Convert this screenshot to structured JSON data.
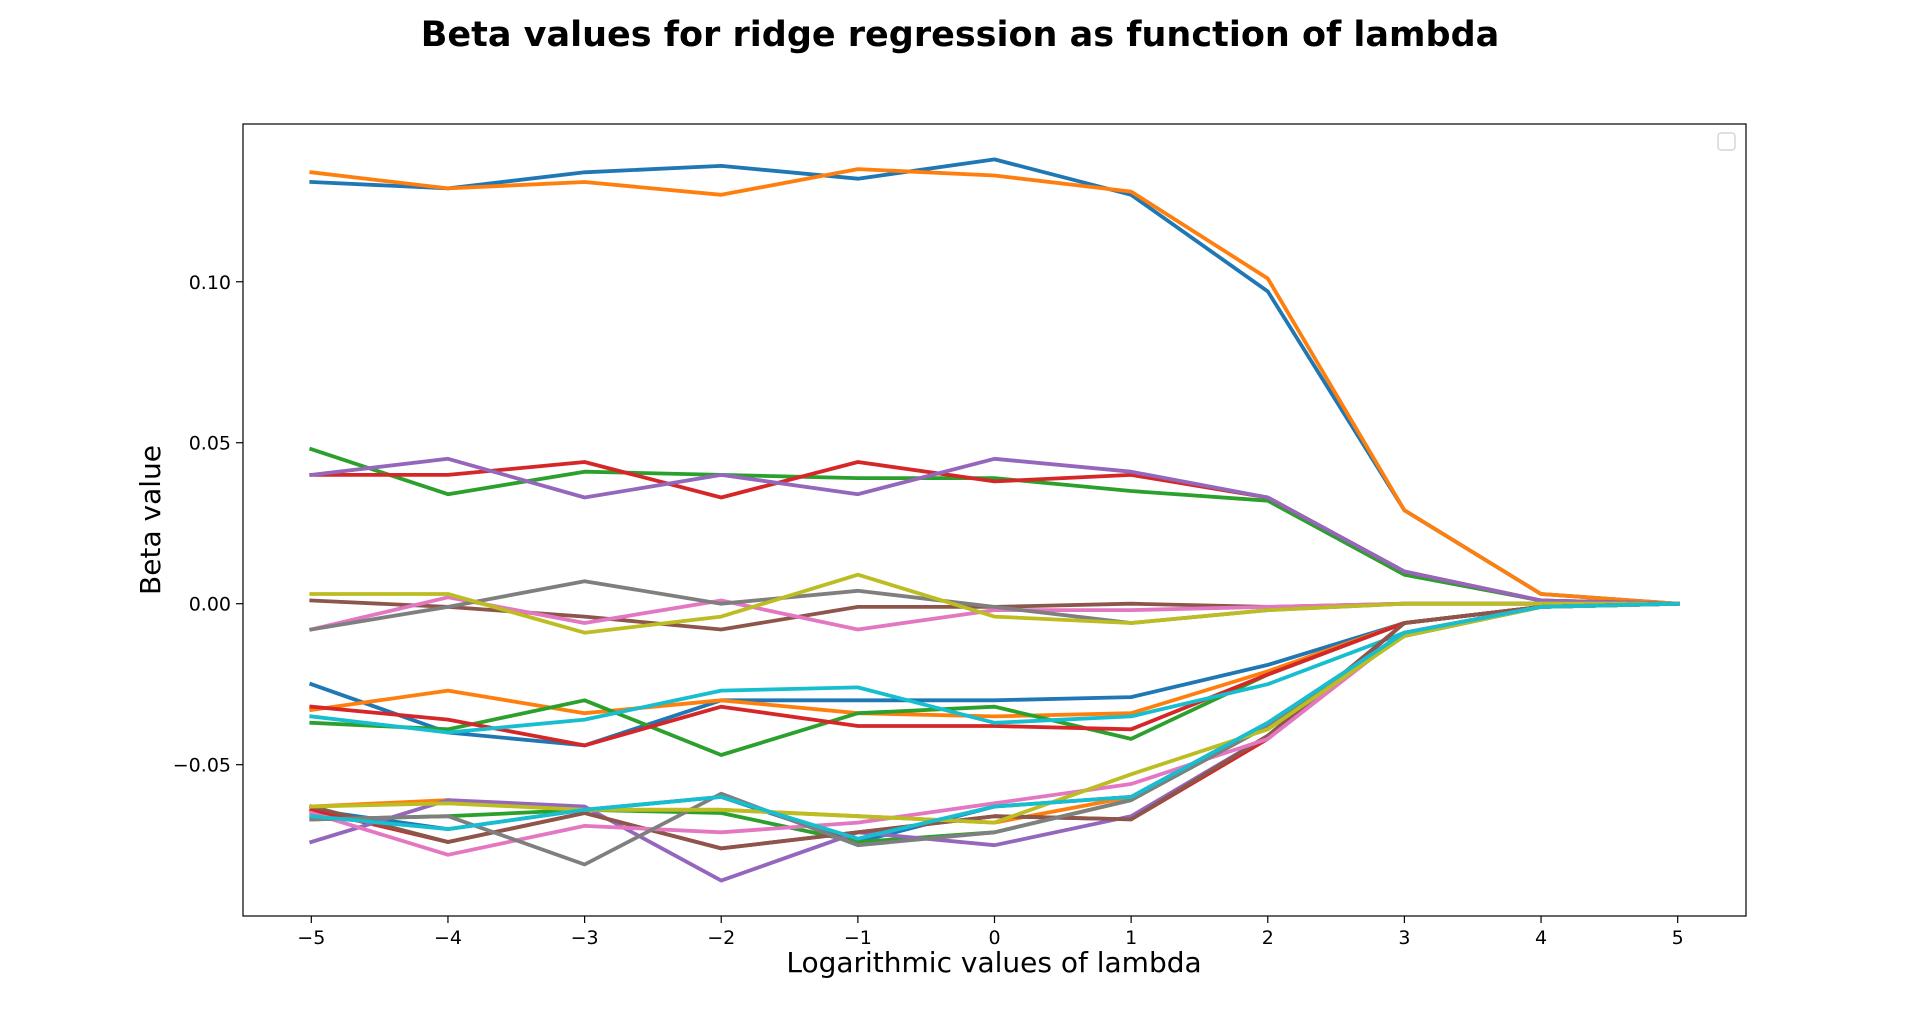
{
  "chart_data": {
    "type": "line",
    "title": "Beta values for ridge regression as function of lambda",
    "xlabel": "Logarithmic values of lambda",
    "ylabel": "Beta value",
    "x": [
      -5,
      -4,
      -3,
      -2,
      -1,
      0,
      1,
      2,
      3,
      4,
      5
    ],
    "x_ticks": [
      -5,
      -4,
      -3,
      -2,
      -1,
      0,
      1,
      2,
      3,
      4,
      5
    ],
    "x_tick_labels": [
      "−5",
      "−4",
      "−3",
      "−2",
      "−1",
      "0",
      "1",
      "2",
      "3",
      "4",
      "5"
    ],
    "y_ticks": [
      -0.05,
      0.0,
      0.05,
      0.1
    ],
    "y_tick_labels": [
      "−0.05",
      "0.00",
      "0.05",
      "0.10"
    ],
    "xlim": [
      -5.5,
      5.5
    ],
    "ylim": [
      -0.097,
      0.149
    ],
    "grid": false,
    "legend": "top-right (empty)",
    "series": [
      {
        "color": "#1f77b4",
        "values": [
          0.131,
          0.129,
          0.134,
          0.136,
          0.132,
          0.138,
          0.127,
          0.097,
          0.029,
          0.003,
          0.0
        ]
      },
      {
        "color": "#ff7f0e",
        "values": [
          0.134,
          0.129,
          0.131,
          0.127,
          0.135,
          0.133,
          0.128,
          0.101,
          0.029,
          0.003,
          0.0
        ]
      },
      {
        "color": "#2ca02c",
        "values": [
          0.048,
          0.034,
          0.041,
          0.04,
          0.039,
          0.039,
          0.035,
          0.032,
          0.009,
          0.001,
          0.0
        ]
      },
      {
        "color": "#d62728",
        "values": [
          0.04,
          0.04,
          0.044,
          0.033,
          0.044,
          0.038,
          0.04,
          0.033,
          0.01,
          0.001,
          0.0
        ]
      },
      {
        "color": "#9467bd",
        "values": [
          0.04,
          0.045,
          0.033,
          0.04,
          0.034,
          0.045,
          0.041,
          0.033,
          0.01,
          0.001,
          0.0
        ]
      },
      {
        "color": "#8c564b",
        "values": [
          0.001,
          -0.001,
          -0.004,
          -0.008,
          -0.001,
          -0.001,
          0.0,
          -0.001,
          0.0,
          0.0,
          0.0
        ]
      },
      {
        "color": "#e377c2",
        "values": [
          -0.008,
          0.002,
          -0.006,
          0.001,
          -0.008,
          -0.002,
          -0.002,
          -0.001,
          0.0,
          0.0,
          0.0
        ]
      },
      {
        "color": "#7f7f7f",
        "values": [
          -0.008,
          -0.001,
          0.007,
          0.0,
          0.004,
          -0.001,
          -0.006,
          -0.002,
          0.0,
          0.0,
          0.0
        ]
      },
      {
        "color": "#bcbd22",
        "values": [
          0.003,
          0.003,
          -0.009,
          -0.004,
          0.009,
          -0.004,
          -0.006,
          -0.002,
          0.0,
          0.0,
          0.0
        ]
      },
      {
        "color": "#1f77b4",
        "values": [
          -0.025,
          -0.04,
          -0.044,
          -0.03,
          -0.03,
          -0.03,
          -0.029,
          -0.019,
          -0.006,
          -0.001,
          0.0
        ]
      },
      {
        "color": "#ff7f0e",
        "values": [
          -0.033,
          -0.027,
          -0.034,
          -0.03,
          -0.034,
          -0.035,
          -0.034,
          -0.021,
          -0.006,
          -0.001,
          0.0
        ]
      },
      {
        "color": "#2ca02c",
        "values": [
          -0.037,
          -0.039,
          -0.03,
          -0.047,
          -0.034,
          -0.032,
          -0.042,
          -0.022,
          -0.006,
          -0.001,
          0.0
        ]
      },
      {
        "color": "#d62728",
        "values": [
          -0.032,
          -0.036,
          -0.044,
          -0.032,
          -0.038,
          -0.038,
          -0.039,
          -0.022,
          -0.006,
          -0.001,
          0.0
        ]
      },
      {
        "color": "#17becf",
        "values": [
          -0.035,
          -0.04,
          -0.036,
          -0.027,
          -0.026,
          -0.037,
          -0.035,
          -0.025,
          -0.009,
          -0.001,
          0.0
        ]
      },
      {
        "color": "#1f77b4",
        "values": [
          -0.064,
          -0.07,
          -0.064,
          -0.06,
          -0.074,
          -0.063,
          -0.06,
          -0.037,
          -0.009,
          -0.001,
          0.0
        ]
      },
      {
        "color": "#ff7f0e",
        "values": [
          -0.063,
          -0.061,
          -0.064,
          -0.064,
          -0.066,
          -0.068,
          -0.06,
          -0.038,
          -0.01,
          -0.001,
          0.0
        ]
      },
      {
        "color": "#2ca02c",
        "values": [
          -0.067,
          -0.066,
          -0.064,
          -0.065,
          -0.074,
          -0.071,
          -0.061,
          -0.038,
          -0.01,
          -0.001,
          0.0
        ]
      },
      {
        "color": "#d62728",
        "values": [
          -0.064,
          -0.074,
          -0.065,
          -0.076,
          -0.071,
          -0.066,
          -0.067,
          -0.042,
          -0.006,
          -0.001,
          0.0
        ]
      },
      {
        "color": "#9467bd",
        "values": [
          -0.074,
          -0.061,
          -0.063,
          -0.086,
          -0.071,
          -0.075,
          -0.066,
          -0.041,
          -0.009,
          -0.001,
          0.0
        ]
      },
      {
        "color": "#8c564b",
        "values": [
          -0.063,
          -0.074,
          -0.065,
          -0.076,
          -0.071,
          -0.066,
          -0.067,
          -0.041,
          -0.006,
          -0.001,
          0.0
        ]
      },
      {
        "color": "#e377c2",
        "values": [
          -0.065,
          -0.078,
          -0.069,
          -0.071,
          -0.068,
          -0.062,
          -0.056,
          -0.042,
          -0.009,
          -0.001,
          0.0
        ]
      },
      {
        "color": "#7f7f7f",
        "values": [
          -0.067,
          -0.066,
          -0.081,
          -0.059,
          -0.075,
          -0.071,
          -0.061,
          -0.038,
          -0.01,
          -0.001,
          0.0
        ]
      },
      {
        "color": "#bcbd22",
        "values": [
          -0.063,
          -0.062,
          -0.064,
          -0.064,
          -0.066,
          -0.068,
          -0.053,
          -0.039,
          -0.01,
          -0.001,
          0.0
        ]
      },
      {
        "color": "#17becf",
        "values": [
          -0.066,
          -0.07,
          -0.064,
          -0.06,
          -0.073,
          -0.063,
          -0.06,
          -0.037,
          -0.009,
          -0.001,
          0.0
        ]
      }
    ]
  }
}
